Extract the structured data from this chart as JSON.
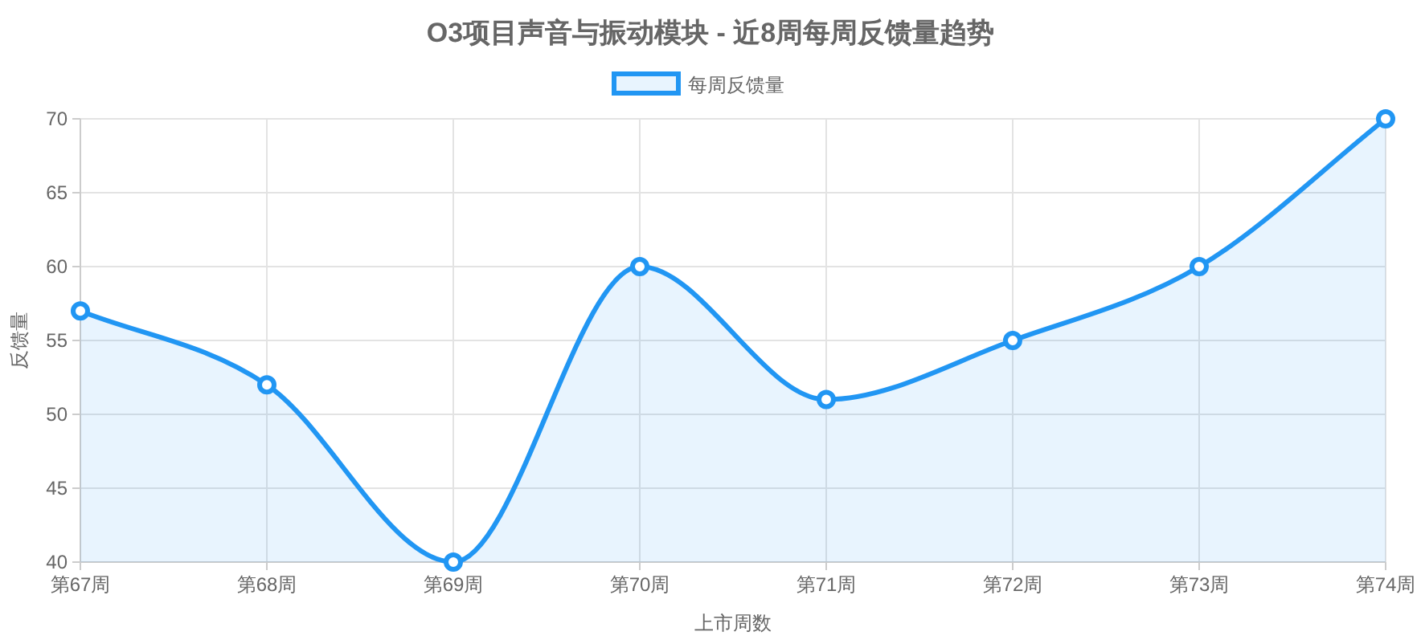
{
  "chart_data": {
    "type": "area",
    "title": "O3项目声音与振动模块 - 近8周每周反馈量趋势",
    "xlabel": "上市周数",
    "ylabel": "反馈量",
    "categories": [
      "第67周",
      "第68周",
      "第69周",
      "第70周",
      "第71周",
      "第72周",
      "第73周",
      "第74周"
    ],
    "series": [
      {
        "name": "每周反馈量",
        "color": "#2196f3",
        "values": [
          57,
          52,
          40,
          60,
          51,
          55,
          60,
          70
        ]
      }
    ],
    "ylim": [
      40,
      70
    ],
    "yticks": [
      40,
      45,
      50,
      55,
      60,
      65,
      70
    ],
    "grid": true,
    "legend": "top",
    "marker": "circle",
    "line_style": "solid"
  }
}
